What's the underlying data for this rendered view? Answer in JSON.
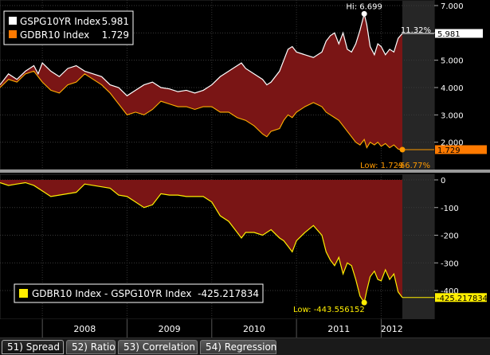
{
  "colors": {
    "bg": "#000000",
    "fill": "#7a1515",
    "top_series": "#ffffff",
    "bottom_series": "#ffb000",
    "spread_series": "#ffee00",
    "future_shade": "#262626",
    "grid": "#3a3a3a",
    "separator": "#9a9a9a"
  },
  "chart_data": [
    {
      "type": "line",
      "x_axis": {
        "ticks": [
          "2008",
          "2009",
          "2010",
          "2011",
          "2012"
        ]
      },
      "ylim": [
        1.0,
        7.0
      ],
      "y_ticks": [
        "7.000",
        "6.000",
        "5.000",
        "4.000",
        "3.000",
        "2.000"
      ],
      "legend": [
        {
          "name": "GSPG10YR Index",
          "value": "5.981",
          "color": "#ffffff"
        },
        {
          "name": "GDBR10 Index",
          "value": "1.729",
          "color": "#ff7a00"
        }
      ],
      "annotations": {
        "hi": "Hi: 6.699",
        "low": "Low: 1.729",
        "top_pct": "11.32%",
        "bottom_pct": "-66.77%",
        "top_last": "5.981",
        "bottom_last": "1.729"
      },
      "series": [
        {
          "name": "GSPG10YR Index",
          "points": [
            [
              2007.5,
              4.1
            ],
            [
              2007.6,
              4.5
            ],
            [
              2007.7,
              4.3
            ],
            [
              2007.8,
              4.6
            ],
            [
              2007.9,
              4.8
            ],
            [
              2007.95,
              4.5
            ],
            [
              2008.0,
              4.9
            ],
            [
              2008.1,
              4.6
            ],
            [
              2008.2,
              4.4
            ],
            [
              2008.3,
              4.7
            ],
            [
              2008.4,
              4.8
            ],
            [
              2008.5,
              4.6
            ],
            [
              2008.6,
              4.5
            ],
            [
              2008.7,
              4.4
            ],
            [
              2008.8,
              4.1
            ],
            [
              2008.9,
              4.0
            ],
            [
              2009.0,
              3.7
            ],
            [
              2009.1,
              3.9
            ],
            [
              2009.2,
              4.1
            ],
            [
              2009.3,
              4.2
            ],
            [
              2009.4,
              4.0
            ],
            [
              2009.5,
              3.95
            ],
            [
              2009.6,
              3.85
            ],
            [
              2009.7,
              3.9
            ],
            [
              2009.8,
              3.8
            ],
            [
              2009.9,
              3.9
            ],
            [
              2010.0,
              4.1
            ],
            [
              2010.1,
              4.4
            ],
            [
              2010.2,
              4.6
            ],
            [
              2010.3,
              4.8
            ],
            [
              2010.35,
              4.9
            ],
            [
              2010.4,
              4.7
            ],
            [
              2010.5,
              4.5
            ],
            [
              2010.6,
              4.3
            ],
            [
              2010.65,
              4.1
            ],
            [
              2010.7,
              4.2
            ],
            [
              2010.8,
              4.6
            ],
            [
              2010.85,
              5.0
            ],
            [
              2010.9,
              5.4
            ],
            [
              2010.95,
              5.5
            ],
            [
              2011.0,
              5.3
            ],
            [
              2011.1,
              5.2
            ],
            [
              2011.2,
              5.1
            ],
            [
              2011.3,
              5.3
            ],
            [
              2011.35,
              5.7
            ],
            [
              2011.4,
              5.9
            ],
            [
              2011.45,
              6.0
            ],
            [
              2011.5,
              5.6
            ],
            [
              2011.55,
              6.0
            ],
            [
              2011.6,
              5.4
            ],
            [
              2011.65,
              5.3
            ],
            [
              2011.7,
              5.6
            ],
            [
              2011.75,
              6.1
            ],
            [
              2011.8,
              6.699
            ],
            [
              2011.83,
              6.3
            ],
            [
              2011.87,
              5.5
            ],
            [
              2011.92,
              5.2
            ],
            [
              2011.96,
              5.6
            ],
            [
              2012.0,
              5.5
            ],
            [
              2012.05,
              5.2
            ],
            [
              2012.1,
              5.4
            ],
            [
              2012.15,
              5.3
            ],
            [
              2012.2,
              5.8
            ],
            [
              2012.25,
              5.981
            ]
          ]
        },
        {
          "name": "GDBR10 Index",
          "points": [
            [
              2007.5,
              4.0
            ],
            [
              2007.6,
              4.3
            ],
            [
              2007.7,
              4.2
            ],
            [
              2007.8,
              4.5
            ],
            [
              2007.9,
              4.6
            ],
            [
              2008.0,
              4.2
            ],
            [
              2008.1,
              3.9
            ],
            [
              2008.2,
              3.8
            ],
            [
              2008.3,
              4.1
            ],
            [
              2008.4,
              4.2
            ],
            [
              2008.5,
              4.5
            ],
            [
              2008.6,
              4.3
            ],
            [
              2008.7,
              4.1
            ],
            [
              2008.8,
              3.8
            ],
            [
              2008.9,
              3.4
            ],
            [
              2009.0,
              3.0
            ],
            [
              2009.1,
              3.1
            ],
            [
              2009.2,
              3.0
            ],
            [
              2009.3,
              3.2
            ],
            [
              2009.4,
              3.5
            ],
            [
              2009.5,
              3.4
            ],
            [
              2009.6,
              3.3
            ],
            [
              2009.7,
              3.3
            ],
            [
              2009.8,
              3.2
            ],
            [
              2009.9,
              3.3
            ],
            [
              2010.0,
              3.3
            ],
            [
              2010.1,
              3.1
            ],
            [
              2010.2,
              3.1
            ],
            [
              2010.3,
              2.9
            ],
            [
              2010.4,
              2.8
            ],
            [
              2010.5,
              2.6
            ],
            [
              2010.6,
              2.3
            ],
            [
              2010.65,
              2.2
            ],
            [
              2010.7,
              2.4
            ],
            [
              2010.8,
              2.5
            ],
            [
              2010.85,
              2.8
            ],
            [
              2010.9,
              3.0
            ],
            [
              2010.95,
              2.9
            ],
            [
              2011.0,
              3.1
            ],
            [
              2011.1,
              3.3
            ],
            [
              2011.2,
              3.45
            ],
            [
              2011.3,
              3.3
            ],
            [
              2011.35,
              3.1
            ],
            [
              2011.4,
              3.0
            ],
            [
              2011.45,
              2.9
            ],
            [
              2011.5,
              2.8
            ],
            [
              2011.55,
              2.6
            ],
            [
              2011.6,
              2.4
            ],
            [
              2011.65,
              2.2
            ],
            [
              2011.7,
              2.0
            ],
            [
              2011.75,
              1.9
            ],
            [
              2011.8,
              2.1
            ],
            [
              2011.83,
              1.8
            ],
            [
              2011.87,
              2.0
            ],
            [
              2011.92,
              1.9
            ],
            [
              2011.96,
              2.0
            ],
            [
              2012.0,
              1.85
            ],
            [
              2012.05,
              1.95
            ],
            [
              2012.1,
              1.8
            ],
            [
              2012.15,
              1.9
            ],
            [
              2012.2,
              1.75
            ],
            [
              2012.25,
              1.729
            ]
          ]
        }
      ]
    },
    {
      "type": "area",
      "ylim": [
        -460,
        20
      ],
      "y_ticks": [
        "0",
        "-100",
        "-200",
        "-300",
        "-400"
      ],
      "legend": [
        {
          "name": "GDBR10 Index - GSPG10YR Index",
          "value": "-425.217834",
          "color": "#ffee00"
        }
      ],
      "annotations": {
        "low": "Low: -443.556152",
        "last": "-425.217834"
      },
      "series": [
        {
          "name": "GDBR10 Index - GSPG10YR Index",
          "points": [
            [
              2007.5,
              -10
            ],
            [
              2007.6,
              -20
            ],
            [
              2007.7,
              -15
            ],
            [
              2007.8,
              -10
            ],
            [
              2007.9,
              -20
            ],
            [
              2008.0,
              -40
            ],
            [
              2008.1,
              -60
            ],
            [
              2008.2,
              -55
            ],
            [
              2008.3,
              -50
            ],
            [
              2008.4,
              -45
            ],
            [
              2008.5,
              -15
            ],
            [
              2008.6,
              -20
            ],
            [
              2008.7,
              -25
            ],
            [
              2008.8,
              -30
            ],
            [
              2008.9,
              -55
            ],
            [
              2009.0,
              -60
            ],
            [
              2009.1,
              -80
            ],
            [
              2009.2,
              -100
            ],
            [
              2009.3,
              -90
            ],
            [
              2009.4,
              -50
            ],
            [
              2009.5,
              -55
            ],
            [
              2009.6,
              -55
            ],
            [
              2009.7,
              -60
            ],
            [
              2009.8,
              -60
            ],
            [
              2009.9,
              -60
            ],
            [
              2010.0,
              -80
            ],
            [
              2010.1,
              -130
            ],
            [
              2010.2,
              -150
            ],
            [
              2010.3,
              -190
            ],
            [
              2010.35,
              -210
            ],
            [
              2010.4,
              -190
            ],
            [
              2010.5,
              -190
            ],
            [
              2010.6,
              -200
            ],
            [
              2010.65,
              -190
            ],
            [
              2010.7,
              -180
            ],
            [
              2010.8,
              -210
            ],
            [
              2010.85,
              -220
            ],
            [
              2010.9,
              -240
            ],
            [
              2010.95,
              -260
            ],
            [
              2011.0,
              -220
            ],
            [
              2011.1,
              -190
            ],
            [
              2011.2,
              -165
            ],
            [
              2011.3,
              -200
            ],
            [
              2011.35,
              -260
            ],
            [
              2011.4,
              -290
            ],
            [
              2011.45,
              -310
            ],
            [
              2011.5,
              -280
            ],
            [
              2011.55,
              -340
            ],
            [
              2011.6,
              -300
            ],
            [
              2011.65,
              -310
            ],
            [
              2011.7,
              -360
            ],
            [
              2011.75,
              -420
            ],
            [
              2011.8,
              -443.556152
            ],
            [
              2011.83,
              -400
            ],
            [
              2011.87,
              -350
            ],
            [
              2011.92,
              -330
            ],
            [
              2011.96,
              -360
            ],
            [
              2012.0,
              -365
            ],
            [
              2012.05,
              -325
            ],
            [
              2012.1,
              -360
            ],
            [
              2012.15,
              -340
            ],
            [
              2012.2,
              -405
            ],
            [
              2012.25,
              -425.217834
            ]
          ]
        }
      ]
    }
  ],
  "tabs": [
    {
      "label": "51) Spread",
      "active": true
    },
    {
      "label": "52) Ratio",
      "active": false
    },
    {
      "label": "53) Correlation",
      "active": false
    },
    {
      "label": "54) Regression",
      "active": false
    }
  ]
}
